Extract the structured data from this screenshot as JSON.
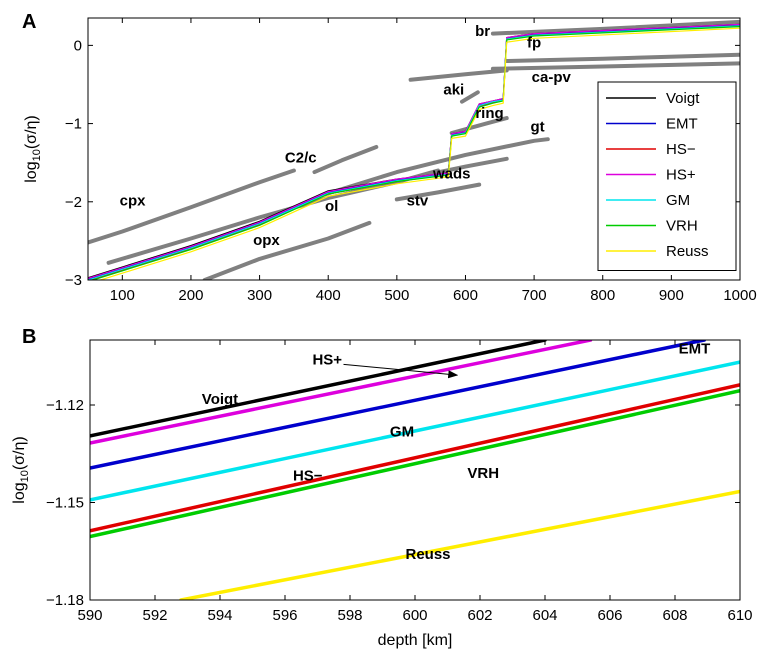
{
  "chart_data": [
    {
      "panel": "A",
      "type": "line",
      "xlim": [
        50,
        1000
      ],
      "ylim": [
        -3,
        0.35
      ],
      "xticks": [
        "100",
        "200",
        "300",
        "400",
        "500",
        "600",
        "700",
        "800",
        "900",
        "1000"
      ],
      "yticks": [
        "0",
        "−1",
        "−2",
        "−3"
      ],
      "ylabel": "log10(σ/η)",
      "legend": {
        "position": "right",
        "entries": [
          {
            "name": "Voigt",
            "color": "#000000"
          },
          {
            "name": "EMT",
            "color": "#0000cc"
          },
          {
            "name": "HS−",
            "color": "#e00000"
          },
          {
            "name": "HS+",
            "color": "#dd00dd"
          },
          {
            "name": "GM",
            "color": "#00e5ee"
          },
          {
            "name": "VRH",
            "color": "#00cc00"
          },
          {
            "name": "Reuss",
            "color": "#ffee00"
          }
        ]
      },
      "mineral_series": [
        {
          "name": "cpx",
          "x": [
            50,
            100,
            200,
            300,
            350
          ],
          "y": [
            -2.52,
            -2.38,
            -2.07,
            -1.75,
            -1.6
          ]
        },
        {
          "name": "C2/c",
          "x": [
            380,
            420,
            470
          ],
          "y": [
            -1.62,
            -1.47,
            -1.3
          ]
        },
        {
          "name": "ol",
          "x": [
            80,
            200,
            300,
            400,
            500,
            560
          ],
          "y": [
            -2.78,
            -2.47,
            -2.2,
            -1.95,
            -1.75,
            -1.6
          ]
        },
        {
          "name": "opx",
          "x": [
            220,
            300,
            400,
            460
          ],
          "y": [
            -3.0,
            -2.73,
            -2.47,
            -2.27
          ]
        },
        {
          "name": "stv",
          "x": [
            500,
            560,
            620
          ],
          "y": [
            -1.97,
            -1.88,
            -1.78
          ]
        },
        {
          "name": "wads",
          "x": [
            540,
            600,
            660
          ],
          "y": [
            -1.66,
            -1.55,
            -1.45
          ]
        },
        {
          "name": "gt",
          "x": [
            390,
            500,
            600,
            700,
            720
          ],
          "y": [
            -1.92,
            -1.62,
            -1.4,
            -1.22,
            -1.2
          ]
        },
        {
          "name": "ring",
          "x": [
            580,
            630,
            660
          ],
          "y": [
            -1.12,
            -1.0,
            -0.93
          ]
        },
        {
          "name": "aki",
          "x": [
            595,
            618
          ],
          "y": [
            -0.72,
            -0.6
          ]
        },
        {
          "name": "ca-pv",
          "x": [
            640,
            800,
            1000
          ],
          "y": [
            -0.3,
            -0.27,
            -0.23
          ]
        },
        {
          "name": "fp",
          "x": [
            520,
            600,
            660
          ],
          "y": [
            -0.44,
            -0.37,
            -0.32
          ]
        },
        {
          "name": "fp",
          "x": [
            660,
            800,
            1000
          ],
          "y": [
            -0.2,
            -0.17,
            -0.12
          ]
        },
        {
          "name": "br",
          "x": [
            640,
            800,
            1000
          ],
          "y": [
            0.15,
            0.21,
            0.3
          ]
        }
      ],
      "mixture_series": [
        {
          "name": "Voigt",
          "x": [
            50,
            200,
            300,
            400,
            500,
            575,
            580,
            600,
            620,
            640,
            655,
            660,
            700,
            1000
          ],
          "y": [
            -2.97,
            -2.56,
            -2.25,
            -1.86,
            -1.71,
            -1.63,
            -1.13,
            -1.1,
            -0.75,
            -0.71,
            -0.68,
            0.1,
            0.15,
            0.27
          ]
        },
        {
          "name": "EMT",
          "x": [
            50,
            200,
            300,
            400,
            500,
            575,
            580,
            600,
            620,
            640,
            655,
            660,
            700,
            1000
          ],
          "y": [
            -2.99,
            -2.58,
            -2.27,
            -1.88,
            -1.72,
            -1.64,
            -1.14,
            -1.11,
            -0.76,
            -0.72,
            -0.69,
            0.09,
            0.14,
            0.26
          ]
        },
        {
          "name": "HS−",
          "x": [
            50,
            200,
            300,
            400,
            500,
            575,
            580,
            600,
            620,
            640,
            655,
            660,
            700,
            1000
          ],
          "y": [
            -3.01,
            -2.6,
            -2.29,
            -1.9,
            -1.74,
            -1.65,
            -1.15,
            -1.12,
            -0.78,
            -0.73,
            -0.7,
            0.08,
            0.13,
            0.25
          ]
        },
        {
          "name": "HS+",
          "x": [
            50,
            200,
            300,
            400,
            500,
            575,
            580,
            600,
            620,
            640,
            655,
            660,
            700,
            1000
          ],
          "y": [
            -2.98,
            -2.57,
            -2.26,
            -1.87,
            -1.71,
            -1.63,
            -1.13,
            -1.1,
            -0.75,
            -0.71,
            -0.68,
            0.1,
            0.15,
            0.27
          ]
        },
        {
          "name": "GM",
          "x": [
            50,
            200,
            300,
            400,
            500,
            575,
            580,
            600,
            620,
            640,
            655,
            660,
            700,
            1000
          ],
          "y": [
            -3.0,
            -2.59,
            -2.28,
            -1.89,
            -1.73,
            -1.65,
            -1.15,
            -1.12,
            -0.77,
            -0.72,
            -0.7,
            0.08,
            0.13,
            0.25
          ]
        },
        {
          "name": "VRH",
          "x": [
            50,
            200,
            300,
            400,
            500,
            575,
            580,
            600,
            620,
            640,
            655,
            660,
            700,
            1000
          ],
          "y": [
            -3.02,
            -2.61,
            -2.3,
            -1.9,
            -1.74,
            -1.66,
            -1.16,
            -1.13,
            -0.79,
            -0.74,
            -0.71,
            0.07,
            0.12,
            0.24
          ]
        },
        {
          "name": "Reuss",
          "x": [
            50,
            200,
            300,
            400,
            500,
            575,
            580,
            600,
            620,
            640,
            655,
            660,
            700,
            1000
          ],
          "y": [
            -3.05,
            -2.64,
            -2.33,
            -1.93,
            -1.77,
            -1.68,
            -1.19,
            -1.16,
            -0.82,
            -0.77,
            -0.74,
            0.04,
            0.09,
            0.22
          ]
        }
      ],
      "annotations": [
        {
          "text": "cpx",
          "x": 115,
          "y": -2.05
        },
        {
          "text": "C2/c",
          "x": 360,
          "y": -1.5
        },
        {
          "text": "ol",
          "x": 405,
          "y": -2.12
        },
        {
          "text": "opx",
          "x": 310,
          "y": -2.55
        },
        {
          "text": "stv",
          "x": 530,
          "y": -2.05
        },
        {
          "text": "wads",
          "x": 580,
          "y": -1.7
        },
        {
          "text": "gt",
          "x": 705,
          "y": -1.1
        },
        {
          "text": "ring",
          "x": 635,
          "y": -0.93
        },
        {
          "text": "aki",
          "x": 583,
          "y": -0.63
        },
        {
          "text": "ca-pv",
          "x": 725,
          "y": -0.47
        },
        {
          "text": "fp",
          "x": 700,
          "y": -0.03
        },
        {
          "text": "br",
          "x": 625,
          "y": 0.12
        }
      ]
    },
    {
      "panel": "B",
      "type": "line",
      "xlim": [
        590,
        610
      ],
      "ylim": [
        -1.18,
        -1.1
      ],
      "xticks": [
        "590",
        "592",
        "594",
        "596",
        "598",
        "600",
        "602",
        "604",
        "606",
        "608",
        "610"
      ],
      "yticks": [
        "−1.12",
        "−1.15",
        "−1.18"
      ],
      "xlabel": "depth [km]",
      "ylabel": "log10(σ/η)",
      "series": [
        {
          "name": "Voigt",
          "color": "#000000",
          "x": [
            590,
            604
          ],
          "y": [
            -1.1295,
            -1.1
          ]
        },
        {
          "name": "HS+",
          "color": "#dd00dd",
          "x": [
            590,
            605.4
          ],
          "y": [
            -1.1317,
            -1.1
          ]
        },
        {
          "name": "EMT",
          "color": "#0000cc",
          "x": [
            590,
            608.9
          ],
          "y": [
            -1.1394,
            -1.1
          ]
        },
        {
          "name": "GM",
          "color": "#00e5ee",
          "x": [
            590,
            610
          ],
          "y": [
            -1.1492,
            -1.1068
          ]
        },
        {
          "name": "HS−",
          "color": "#e00000",
          "x": [
            590,
            610
          ],
          "y": [
            -1.1587,
            -1.1138
          ]
        },
        {
          "name": "VRH",
          "color": "#00cc00",
          "x": [
            590,
            610
          ],
          "y": [
            -1.1605,
            -1.1156
          ]
        },
        {
          "name": "Reuss",
          "color": "#ffee00",
          "x": [
            592.8,
            610
          ],
          "y": [
            -1.18,
            -1.1466
          ]
        }
      ],
      "annotations": [
        {
          "text": "HS+",
          "x": 597.3,
          "y": -1.1075
        },
        {
          "text": "Voigt",
          "x": 594.0,
          "y": -1.1197
        },
        {
          "text": "EMT",
          "x": 608.6,
          "y": -1.1042
        },
        {
          "text": "GM",
          "x": 599.6,
          "y": -1.1297
        },
        {
          "text": "HS−",
          "x": 596.7,
          "y": -1.1432
        },
        {
          "text": "VRH",
          "x": 602.1,
          "y": -1.1425
        },
        {
          "text": "Reuss",
          "x": 600.4,
          "y": -1.1674
        }
      ],
      "arrow": {
        "from": [
          597.8,
          -1.1075
        ],
        "to": [
          601.3,
          -1.1108
        ]
      }
    }
  ]
}
